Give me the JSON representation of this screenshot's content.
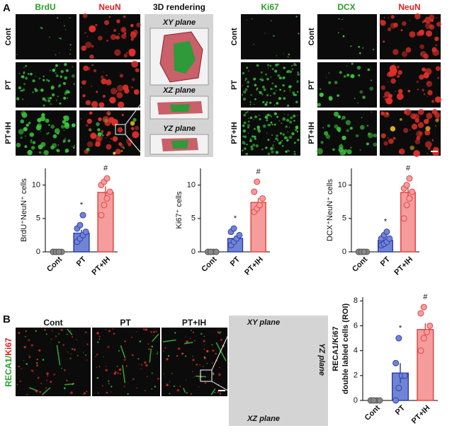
{
  "figure": {
    "panel_a": "A",
    "panel_b": "B",
    "a_headers": [
      "BrdU",
      "NeuN",
      "3D rendering",
      "Ki67",
      "DCX",
      "NeuN"
    ],
    "a_rows_1": [
      "Cont",
      "PT",
      "PT+IH"
    ],
    "a_rows_2": [
      "Cont",
      "PT",
      "PT+IH"
    ],
    "a_rows_3": [
      "Cont",
      "PT",
      "PT+IH"
    ],
    "a_planes": [
      "XY plane",
      "XZ plane",
      "YZ plane"
    ],
    "b_headers": [
      "Cont",
      "PT",
      "PT+IH"
    ],
    "b_side_label": [
      "RECA1/",
      "Ki67"
    ],
    "b_planes": [
      "XY plane",
      "YZ plane",
      "XZ plane"
    ]
  },
  "chart_data": [
    {
      "type": "bar",
      "y_label": "BrdU⁺NeuN⁺ cells",
      "categories": [
        "Cont",
        "PT",
        "PT+IH"
      ],
      "values": [
        0,
        2.8,
        8.9
      ],
      "errors": [
        0,
        0.5,
        0.9
      ],
      "points": [
        [
          0,
          0,
          0,
          0,
          0,
          0,
          0
        ],
        [
          1.5,
          2,
          2.5,
          3,
          3.5,
          4,
          5.5
        ],
        [
          5.5,
          7,
          8,
          9,
          10,
          10.5,
          11
        ]
      ],
      "colors": [
        "#888888",
        "#7084d6",
        "#f59c9c"
      ],
      "edge_colors": [
        "#555555",
        "#3040a8",
        "#e04848"
      ],
      "ylim": [
        0,
        12.5
      ],
      "yticks": [
        0,
        5,
        10
      ],
      "annotations": [
        {
          "text": "*",
          "x": "PT"
        },
        {
          "text": "#",
          "x": "PT+IH"
        }
      ]
    },
    {
      "type": "bar",
      "y_label": "Ki67⁺ cells",
      "categories": [
        "Cont",
        "PT",
        "PT+IH"
      ],
      "values": [
        0,
        2,
        7.4
      ],
      "errors": [
        0,
        0.4,
        0.7
      ],
      "points": [
        [
          0,
          0,
          0,
          0,
          0,
          0
        ],
        [
          1,
          1.5,
          2,
          2.5,
          3,
          3.5
        ],
        [
          6,
          6.5,
          7,
          8,
          9,
          10.5
        ]
      ],
      "colors": [
        "#888888",
        "#7084d6",
        "#f59c9c"
      ],
      "edge_colors": [
        "#555555",
        "#3040a8",
        "#e04848"
      ],
      "ylim": [
        0,
        12.5
      ],
      "yticks": [
        0,
        5,
        10
      ],
      "annotations": [
        {
          "text": "*",
          "x": "PT"
        },
        {
          "text": "#",
          "x": "PT+IH"
        }
      ]
    },
    {
      "type": "bar",
      "y_label": "DCX⁺NeuN⁺ cells",
      "categories": [
        "Cont",
        "PT",
        "PT+IH"
      ],
      "values": [
        0,
        1.7,
        8.9
      ],
      "errors": [
        0,
        0.4,
        0.8
      ],
      "points": [
        [
          0,
          0,
          0,
          0,
          0,
          0,
          0
        ],
        [
          1,
          1.2,
          1.5,
          2,
          2,
          2.5,
          3
        ],
        [
          5,
          7,
          8,
          9,
          9.5,
          10,
          11
        ]
      ],
      "colors": [
        "#888888",
        "#7084d6",
        "#f59c9c"
      ],
      "edge_colors": [
        "#555555",
        "#3040a8",
        "#e04848"
      ],
      "ylim": [
        0,
        12.5
      ],
      "yticks": [
        0,
        5,
        10
      ],
      "annotations": [
        {
          "text": "*",
          "x": "PT"
        },
        {
          "text": "#",
          "x": "PT+IH"
        }
      ]
    },
    {
      "type": "bar",
      "y_label": [
        "RECA1/Ki67",
        "double labled cells (ROI)"
      ],
      "categories": [
        "Cont",
        "PT",
        "PT+IH"
      ],
      "values": [
        0,
        2.2,
        5.7
      ],
      "errors": [
        0,
        0.8,
        0.5
      ],
      "points": [
        [
          0,
          0,
          0,
          0,
          0,
          0
        ],
        [
          0,
          1,
          2,
          2,
          3,
          5
        ],
        [
          4,
          5,
          5.5,
          6,
          7,
          7.5
        ]
      ],
      "colors": [
        "#888888",
        "#7084d6",
        "#f59c9c"
      ],
      "edge_colors": [
        "#555555",
        "#3040a8",
        "#e04848"
      ],
      "ylim": [
        0,
        8.3
      ],
      "yticks": [
        0,
        2,
        4,
        6,
        8
      ],
      "annotations": [
        {
          "text": "*",
          "x": "PT"
        },
        {
          "text": "#",
          "x": "PT+IH"
        }
      ]
    }
  ]
}
